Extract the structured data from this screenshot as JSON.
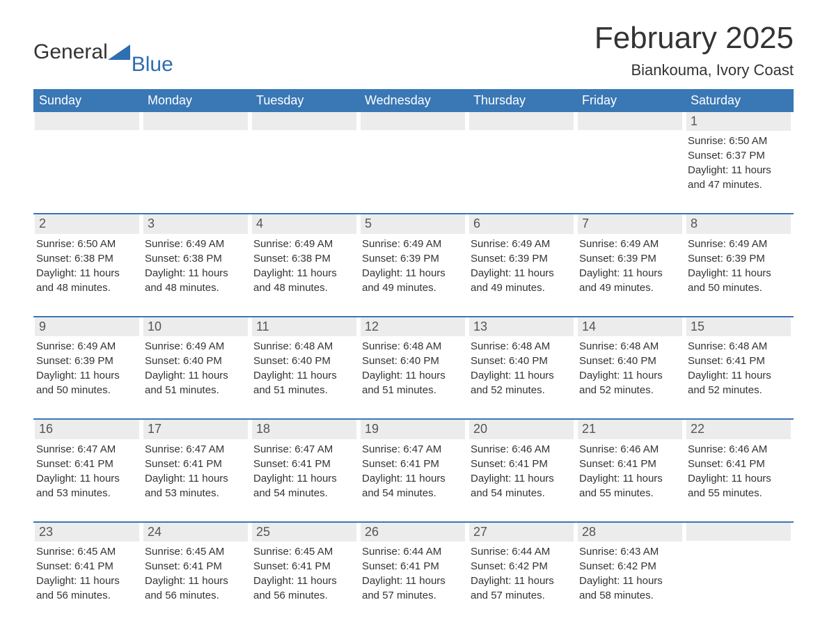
{
  "logo": {
    "word1": "General",
    "word2": "Blue",
    "brand_color": "#2f6eb0"
  },
  "title": "February 2025",
  "location": "Biankouma, Ivory Coast",
  "colors": {
    "header_bg": "#3977b5",
    "header_text": "#ffffff",
    "daynum_bg": "#ececec",
    "daynum_text": "#555555",
    "body_text": "#333333",
    "rule": "#3977b5",
    "page_bg": "#ffffff"
  },
  "typography": {
    "title_pt": 44,
    "location_pt": 22,
    "dayhead_pt": 18,
    "daynum_pt": 18,
    "detail_pt": 15,
    "logo_pt": 30
  },
  "day_headers": [
    "Sunday",
    "Monday",
    "Tuesday",
    "Wednesday",
    "Thursday",
    "Friday",
    "Saturday"
  ],
  "weeks": [
    [
      null,
      null,
      null,
      null,
      null,
      null,
      {
        "d": "1",
        "sr": "6:50 AM",
        "ss": "6:37 PM",
        "dl": "11 hours and 47 minutes."
      }
    ],
    [
      {
        "d": "2",
        "sr": "6:50 AM",
        "ss": "6:38 PM",
        "dl": "11 hours and 48 minutes."
      },
      {
        "d": "3",
        "sr": "6:49 AM",
        "ss": "6:38 PM",
        "dl": "11 hours and 48 minutes."
      },
      {
        "d": "4",
        "sr": "6:49 AM",
        "ss": "6:38 PM",
        "dl": "11 hours and 48 minutes."
      },
      {
        "d": "5",
        "sr": "6:49 AM",
        "ss": "6:39 PM",
        "dl": "11 hours and 49 minutes."
      },
      {
        "d": "6",
        "sr": "6:49 AM",
        "ss": "6:39 PM",
        "dl": "11 hours and 49 minutes."
      },
      {
        "d": "7",
        "sr": "6:49 AM",
        "ss": "6:39 PM",
        "dl": "11 hours and 49 minutes."
      },
      {
        "d": "8",
        "sr": "6:49 AM",
        "ss": "6:39 PM",
        "dl": "11 hours and 50 minutes."
      }
    ],
    [
      {
        "d": "9",
        "sr": "6:49 AM",
        "ss": "6:39 PM",
        "dl": "11 hours and 50 minutes."
      },
      {
        "d": "10",
        "sr": "6:49 AM",
        "ss": "6:40 PM",
        "dl": "11 hours and 51 minutes."
      },
      {
        "d": "11",
        "sr": "6:48 AM",
        "ss": "6:40 PM",
        "dl": "11 hours and 51 minutes."
      },
      {
        "d": "12",
        "sr": "6:48 AM",
        "ss": "6:40 PM",
        "dl": "11 hours and 51 minutes."
      },
      {
        "d": "13",
        "sr": "6:48 AM",
        "ss": "6:40 PM",
        "dl": "11 hours and 52 minutes."
      },
      {
        "d": "14",
        "sr": "6:48 AM",
        "ss": "6:40 PM",
        "dl": "11 hours and 52 minutes."
      },
      {
        "d": "15",
        "sr": "6:48 AM",
        "ss": "6:41 PM",
        "dl": "11 hours and 52 minutes."
      }
    ],
    [
      {
        "d": "16",
        "sr": "6:47 AM",
        "ss": "6:41 PM",
        "dl": "11 hours and 53 minutes."
      },
      {
        "d": "17",
        "sr": "6:47 AM",
        "ss": "6:41 PM",
        "dl": "11 hours and 53 minutes."
      },
      {
        "d": "18",
        "sr": "6:47 AM",
        "ss": "6:41 PM",
        "dl": "11 hours and 54 minutes."
      },
      {
        "d": "19",
        "sr": "6:47 AM",
        "ss": "6:41 PM",
        "dl": "11 hours and 54 minutes."
      },
      {
        "d": "20",
        "sr": "6:46 AM",
        "ss": "6:41 PM",
        "dl": "11 hours and 54 minutes."
      },
      {
        "d": "21",
        "sr": "6:46 AM",
        "ss": "6:41 PM",
        "dl": "11 hours and 55 minutes."
      },
      {
        "d": "22",
        "sr": "6:46 AM",
        "ss": "6:41 PM",
        "dl": "11 hours and 55 minutes."
      }
    ],
    [
      {
        "d": "23",
        "sr": "6:45 AM",
        "ss": "6:41 PM",
        "dl": "11 hours and 56 minutes."
      },
      {
        "d": "24",
        "sr": "6:45 AM",
        "ss": "6:41 PM",
        "dl": "11 hours and 56 minutes."
      },
      {
        "d": "25",
        "sr": "6:45 AM",
        "ss": "6:41 PM",
        "dl": "11 hours and 56 minutes."
      },
      {
        "d": "26",
        "sr": "6:44 AM",
        "ss": "6:41 PM",
        "dl": "11 hours and 57 minutes."
      },
      {
        "d": "27",
        "sr": "6:44 AM",
        "ss": "6:42 PM",
        "dl": "11 hours and 57 minutes."
      },
      {
        "d": "28",
        "sr": "6:43 AM",
        "ss": "6:42 PM",
        "dl": "11 hours and 58 minutes."
      },
      null
    ]
  ],
  "labels": {
    "sunrise": "Sunrise:",
    "sunset": "Sunset:",
    "daylight": "Daylight:"
  }
}
